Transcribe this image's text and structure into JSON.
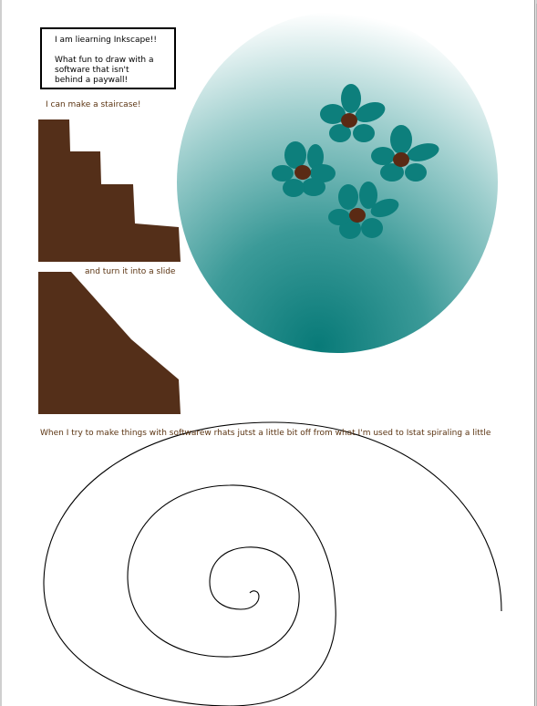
{
  "note": {
    "line1": "I am liearning Inkscape!!",
    "line2": "What fun to draw with a",
    "line3": "software that isn't",
    "line4": "behind a paywall!"
  },
  "captions": {
    "staircase": "I can make a staircase!",
    "slide": "and turn it into a slide",
    "spiral": "When I try to make things with softwarew rhats jutst a little bit off from what I'm used to Istat spiraling a little"
  },
  "colors": {
    "brown": "#542f19",
    "teal": "#0d7f7c",
    "flower_center": "#5a2a14",
    "caption_text": "#5b3412"
  }
}
